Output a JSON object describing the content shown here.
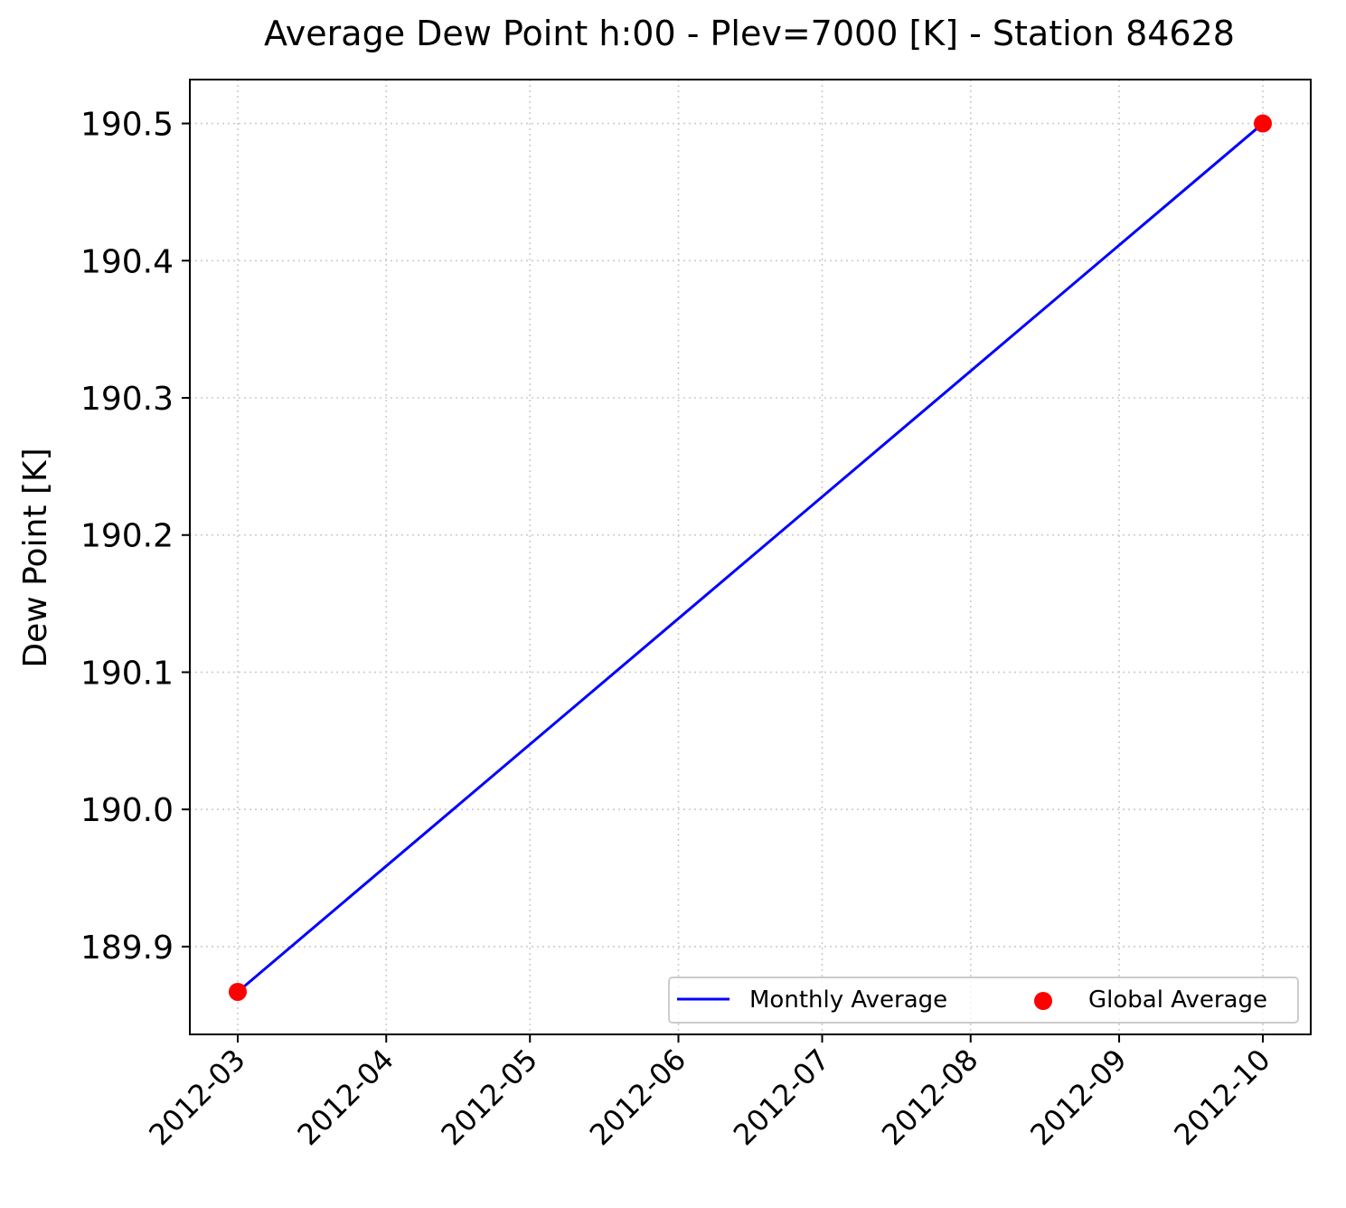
{
  "chart_data": {
    "type": "scatter",
    "title": "Average Dew Point h:00 - Plev=7000 [K] - Station 84628",
    "xlabel": "",
    "ylabel": "Dew Point [K]",
    "x_ticks": [
      "2012-03-01",
      "2012-04-01",
      "2012-05-01",
      "2012-06-01",
      "2012-07-01",
      "2012-08-01",
      "2012-09-01",
      "2012-10-01"
    ],
    "x_tick_labels": [
      "2012-03",
      "2012-04",
      "2012-05",
      "2012-06",
      "2012-07",
      "2012-08",
      "2012-09",
      "2012-10"
    ],
    "y_ticks": [
      189.9,
      190.0,
      190.1,
      190.2,
      190.3,
      190.4,
      190.5
    ],
    "y_tick_labels": [
      "189.9",
      "190.0",
      "190.1",
      "190.2",
      "190.3",
      "190.4",
      "190.5"
    ],
    "xlim": [
      "2012-02-20",
      "2012-10-11"
    ],
    "ylim": [
      189.836,
      190.532
    ],
    "grid": true,
    "legend": {
      "placement": "lower right",
      "entries": [
        "Monthly Average",
        "Global Average"
      ]
    },
    "series": [
      {
        "name": "Monthly Average",
        "kind": "line",
        "color": "#0000ff",
        "points": [
          {
            "x": "2012-03-01",
            "y": 189.867
          },
          {
            "x": "2012-10-01",
            "y": 190.5
          }
        ]
      },
      {
        "name": "Global Average",
        "kind": "scatter",
        "color": "#ff0000",
        "points": [
          {
            "x": "2012-03-01",
            "y": 189.867
          },
          {
            "x": "2012-10-01",
            "y": 190.5
          }
        ]
      }
    ]
  }
}
